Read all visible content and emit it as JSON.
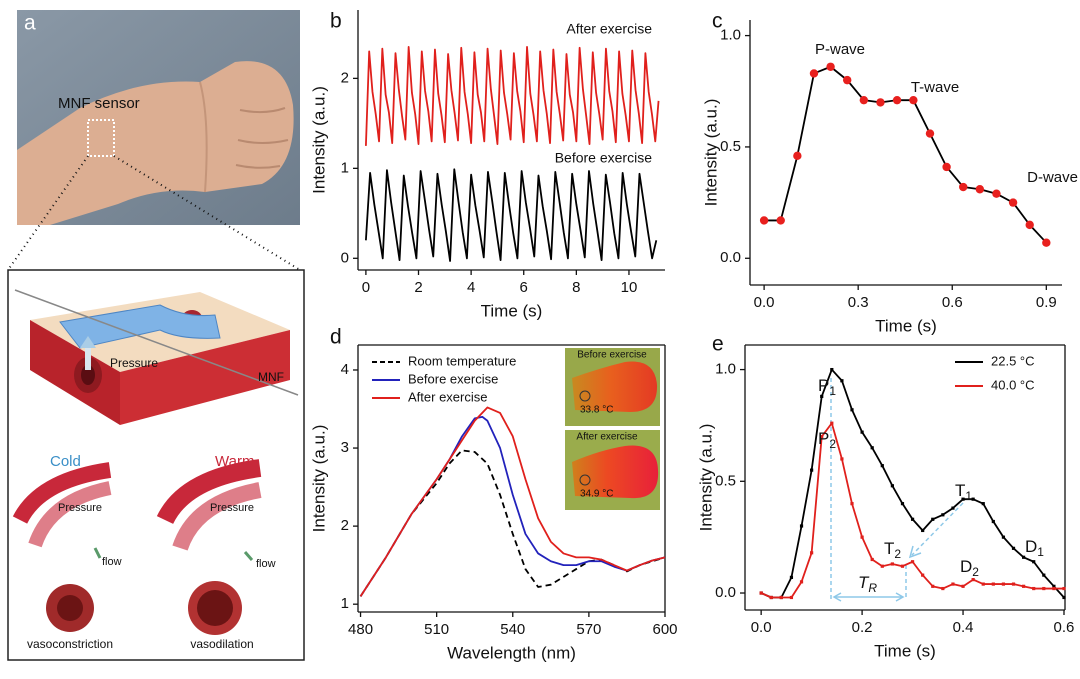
{
  "panel_a": {
    "label": "a",
    "sensor": "MNF sensor",
    "pressure": "Pressure",
    "fiber": "MNF",
    "cold": "Cold",
    "warm": "Warm",
    "cold_pressure": "Pressure",
    "cold_flow": "flow",
    "warm_pressure": "Pressure",
    "warm_flow": "flow",
    "constriction": "vasoconstriction",
    "dilation": "vasodilation"
  },
  "chart_data": [
    {
      "type": "line",
      "panel_label": "b",
      "x_label": "Time (s)",
      "y_label": "Intensity (a.u.)",
      "xlim": [
        -0.3,
        11.37
      ],
      "xticks": [
        0,
        2,
        4,
        6,
        8,
        10
      ],
      "ylim": [
        -0.13,
        2.76
      ],
      "yticks": [
        0,
        1,
        2
      ],
      "series": [
        {
          "name": "After exercise",
          "color": "#e0201c",
          "x": [
            0,
            0.125,
            0.25,
            0.375,
            0.5,
            0.625,
            0.75,
            0.875,
            1,
            1.125,
            1.25,
            1.375,
            1.5,
            1.625,
            1.75,
            1.875,
            2,
            2.125,
            2.25,
            2.375,
            2.5,
            2.625,
            2.75,
            2.875,
            3,
            3.125,
            3.25,
            3.375,
            3.5,
            3.625,
            3.75,
            3.875,
            4,
            4.125,
            4.25,
            4.375,
            4.5,
            4.625,
            4.75,
            4.875,
            5,
            5.125,
            5.25,
            5.375,
            5.5,
            5.625,
            5.75,
            5.875,
            6,
            6.125,
            6.25,
            6.375,
            6.5,
            6.625,
            6.75,
            6.875,
            7,
            7.125,
            7.25,
            7.375,
            7.5,
            7.625,
            7.75,
            7.875,
            8,
            8.125,
            8.25,
            8.375,
            8.5,
            8.625,
            8.75,
            8.875,
            9,
            9.125,
            9.25,
            9.375,
            9.5,
            9.625,
            9.75,
            9.875,
            10,
            10.125,
            10.25,
            10.375,
            10.5,
            10.625,
            10.75,
            10.875,
            11,
            11.125
          ],
          "values": [
            1.25,
            2.3,
            1.85,
            1.6,
            1.3,
            2.33,
            1.82,
            1.62,
            1.28,
            2.28,
            1.88,
            1.58,
            1.32,
            2.35,
            1.84,
            1.6,
            1.27,
            2.3,
            1.86,
            1.63,
            1.3,
            2.32,
            1.83,
            1.59,
            1.29,
            2.27,
            1.87,
            1.61,
            1.31,
            2.34,
            1.85,
            1.6,
            1.28,
            2.29,
            1.82,
            1.62,
            1.3,
            2.33,
            1.88,
            1.58,
            1.27,
            2.31,
            1.84,
            1.6,
            1.32,
            2.28,
            1.86,
            1.63,
            1.29,
            2.35,
            1.83,
            1.59,
            1.3,
            2.3,
            1.87,
            1.61,
            1.28,
            2.32,
            1.85,
            1.6,
            1.31,
            2.27,
            1.82,
            1.62,
            1.3,
            2.34,
            1.88,
            1.58,
            1.27,
            2.29,
            1.84,
            1.6,
            1.32,
            2.33,
            1.86,
            1.63,
            1.29,
            2.3,
            1.83,
            1.59,
            1.3,
            2.31,
            1.87,
            1.61,
            1.28,
            2.28,
            1.85,
            1.6,
            1.3,
            1.75
          ]
        },
        {
          "name": "Before exercise",
          "color": "#000000",
          "x": [
            0,
            0.16,
            0.32,
            0.48,
            0.64,
            0.8,
            0.96,
            1.12,
            1.28,
            1.44,
            1.6,
            1.76,
            1.92,
            2.08,
            2.24,
            2.4,
            2.56,
            2.72,
            2.88,
            3.04,
            3.2,
            3.36,
            3.52,
            3.68,
            3.84,
            4,
            4.16,
            4.32,
            4.48,
            4.64,
            4.8,
            4.96,
            5.12,
            5.28,
            5.44,
            5.6,
            5.76,
            5.92,
            6.08,
            6.24,
            6.4,
            6.56,
            6.72,
            6.88,
            7.04,
            7.2,
            7.36,
            7.52,
            7.68,
            7.84,
            8,
            8.16,
            8.32,
            8.48,
            8.64,
            8.8,
            8.96,
            9.12,
            9.28,
            9.44,
            9.6,
            9.76,
            9.92,
            10.08,
            10.24,
            10.4,
            10.56,
            10.72,
            10.88,
            11.04
          ],
          "values": [
            0.2,
            0.95,
            0.6,
            0.3,
            0.0,
            0.98,
            0.62,
            0.3,
            -0.02,
            0.92,
            0.58,
            0.28,
            0.0,
            0.97,
            0.65,
            0.32,
            0.02,
            0.94,
            0.6,
            0.3,
            -0.03,
            0.99,
            0.63,
            0.29,
            0.0,
            0.93,
            0.59,
            0.31,
            0.01,
            0.96,
            0.64,
            0.3,
            -0.02,
            0.95,
            0.6,
            0.28,
            0.0,
            0.97,
            0.62,
            0.33,
            0.02,
            0.92,
            0.58,
            0.3,
            -0.01,
            0.96,
            0.63,
            0.29,
            0.0,
            0.94,
            0.6,
            0.31,
            0.01,
            0.97,
            0.61,
            0.3,
            -0.02,
            0.93,
            0.62,
            0.28,
            0.0,
            0.95,
            0.6,
            0.3,
            0.02,
            0.94,
            0.62,
            0.3,
            0.0,
            0.2
          ]
        }
      ]
    },
    {
      "type": "line",
      "panel_label": "c",
      "x_label": "Time (s)",
      "y_label": "Intensity (a.u.)",
      "xlim": [
        -0.045,
        0.95
      ],
      "xticks": [
        {
          "value": 0,
          "label": "0.0"
        },
        0.3,
        0.6,
        0.9
      ],
      "ylim": [
        -0.12,
        1.07
      ],
      "yticks": [
        {
          "value": 0,
          "label": "0.0"
        },
        0.5,
        {
          "value": 1,
          "label": "1.0"
        }
      ],
      "annotations": [
        "P-wave",
        "T-wave",
        "D-wave"
      ],
      "series": [
        {
          "color": "#000000",
          "marker": "circle",
          "marker_color": "#e8201e",
          "x": [
            0,
            0.053,
            0.106,
            0.159,
            0.212,
            0.265,
            0.318,
            0.371,
            0.424,
            0.476,
            0.529,
            0.582,
            0.635,
            0.688,
            0.741,
            0.794,
            0.847,
            0.9
          ],
          "values": [
            0.17,
            0.17,
            0.46,
            0.83,
            0.86,
            0.8,
            0.71,
            0.7,
            0.71,
            0.71,
            0.56,
            0.41,
            0.32,
            0.31,
            0.29,
            0.25,
            0.15,
            0.07
          ]
        }
      ]
    },
    {
      "type": "line",
      "panel_label": "d",
      "x_label": "Wavelength (nm)",
      "y_label": "Intensity (a.u.)",
      "xlim": [
        479,
        600
      ],
      "xticks": [
        480,
        510,
        540,
        570,
        600
      ],
      "ylim": [
        0.9,
        4.32
      ],
      "yticks": [
        1,
        2,
        3,
        4
      ],
      "legend": "upper left",
      "annotations": [
        "Before exercise",
        "33.8 °C",
        "After exercise",
        "34.9 °C"
      ],
      "series": [
        {
          "name": "Room temperature",
          "color": "#000000",
          "dash": true,
          "x": [
            480,
            490,
            500,
            510,
            515,
            520,
            525,
            530,
            535,
            540,
            545,
            550,
            555,
            560,
            565,
            570,
            575,
            580,
            585,
            590,
            595,
            600
          ],
          "values": [
            1.1,
            1.6,
            2.15,
            2.55,
            2.8,
            2.97,
            2.95,
            2.8,
            2.4,
            1.9,
            1.45,
            1.22,
            1.25,
            1.35,
            1.45,
            1.55,
            1.57,
            1.5,
            1.42,
            1.5,
            1.55,
            1.6
          ]
        },
        {
          "name": "Before exercise",
          "color": "#2222bb",
          "x": [
            480,
            490,
            500,
            510,
            515,
            520,
            525,
            528,
            530,
            535,
            540,
            545,
            550,
            555,
            560,
            565,
            570,
            575,
            580,
            585,
            590,
            595,
            600
          ],
          "values": [
            1.1,
            1.6,
            2.15,
            2.6,
            2.85,
            3.15,
            3.38,
            3.4,
            3.35,
            3.0,
            2.4,
            1.9,
            1.65,
            1.55,
            1.5,
            1.5,
            1.55,
            1.55,
            1.48,
            1.43,
            1.5,
            1.56,
            1.6
          ]
        },
        {
          "name": "After exercise",
          "color": "#e0201c",
          "x": [
            480,
            490,
            500,
            510,
            515,
            520,
            525,
            530,
            535,
            540,
            545,
            550,
            555,
            560,
            565,
            570,
            575,
            580,
            585,
            590,
            595,
            600
          ],
          "values": [
            1.1,
            1.6,
            2.15,
            2.6,
            2.85,
            3.1,
            3.35,
            3.52,
            3.45,
            3.15,
            2.6,
            2.1,
            1.8,
            1.65,
            1.6,
            1.6,
            1.57,
            1.5,
            1.43,
            1.5,
            1.56,
            1.6
          ]
        }
      ]
    },
    {
      "type": "line",
      "panel_label": "e",
      "x_label": "Time (s)",
      "y_label": "Intensity (a.u.)",
      "xlim": [
        -0.032,
        0.602
      ],
      "xticks": [
        {
          "value": 0,
          "label": "0.0"
        },
        0.2,
        0.4,
        0.6
      ],
      "ylim": [
        -0.076,
        1.11
      ],
      "yticks": [
        {
          "value": 0,
          "label": "0.0"
        },
        0.5,
        {
          "value": 1,
          "label": "1.0"
        }
      ],
      "legend": "upper right",
      "annotations": [
        {
          "text": "P",
          "sub": "1"
        },
        {
          "text": "P",
          "sub": "2"
        },
        {
          "text": "T",
          "sub": "1"
        },
        {
          "text": "T",
          "sub": "2"
        },
        {
          "text": "D",
          "sub": "1"
        },
        {
          "text": "D",
          "sub": "2"
        },
        {
          "text": "T",
          "sub": "R"
        }
      ],
      "series": [
        {
          "name": "22.5 °C",
          "color": "#000000",
          "marker": "square",
          "x": [
            0,
            0.02,
            0.04,
            0.06,
            0.08,
            0.1,
            0.12,
            0.14,
            0.16,
            0.18,
            0.2,
            0.22,
            0.24,
            0.26,
            0.28,
            0.3,
            0.32,
            0.34,
            0.36,
            0.38,
            0.4,
            0.42,
            0.44,
            0.46,
            0.48,
            0.5,
            0.52,
            0.54,
            0.56,
            0.58,
            0.6
          ],
          "values": [
            0,
            -0.02,
            -0.02,
            0.07,
            0.3,
            0.55,
            0.88,
            1.0,
            0.95,
            0.82,
            0.72,
            0.65,
            0.57,
            0.48,
            0.4,
            0.33,
            0.28,
            0.33,
            0.35,
            0.38,
            0.42,
            0.42,
            0.4,
            0.32,
            0.25,
            0.2,
            0.16,
            0.14,
            0.08,
            0.03,
            -0.02
          ]
        },
        {
          "name": "40.0 °C",
          "color": "#e0201c",
          "marker": "square",
          "x": [
            0,
            0.02,
            0.04,
            0.06,
            0.08,
            0.1,
            0.12,
            0.14,
            0.16,
            0.18,
            0.2,
            0.22,
            0.24,
            0.26,
            0.28,
            0.3,
            0.32,
            0.34,
            0.36,
            0.38,
            0.4,
            0.42,
            0.44,
            0.46,
            0.48,
            0.5,
            0.52,
            0.54,
            0.56,
            0.58,
            0.6
          ],
          "values": [
            0,
            -0.02,
            -0.02,
            -0.02,
            0.05,
            0.18,
            0.7,
            0.76,
            0.6,
            0.4,
            0.25,
            0.15,
            0.12,
            0.13,
            0.12,
            0.14,
            0.08,
            0.03,
            0.02,
            0.04,
            0.03,
            0.06,
            0.04,
            0.04,
            0.04,
            0.04,
            0.03,
            0.02,
            0.02,
            0.02,
            0.02
          ]
        }
      ]
    }
  ]
}
